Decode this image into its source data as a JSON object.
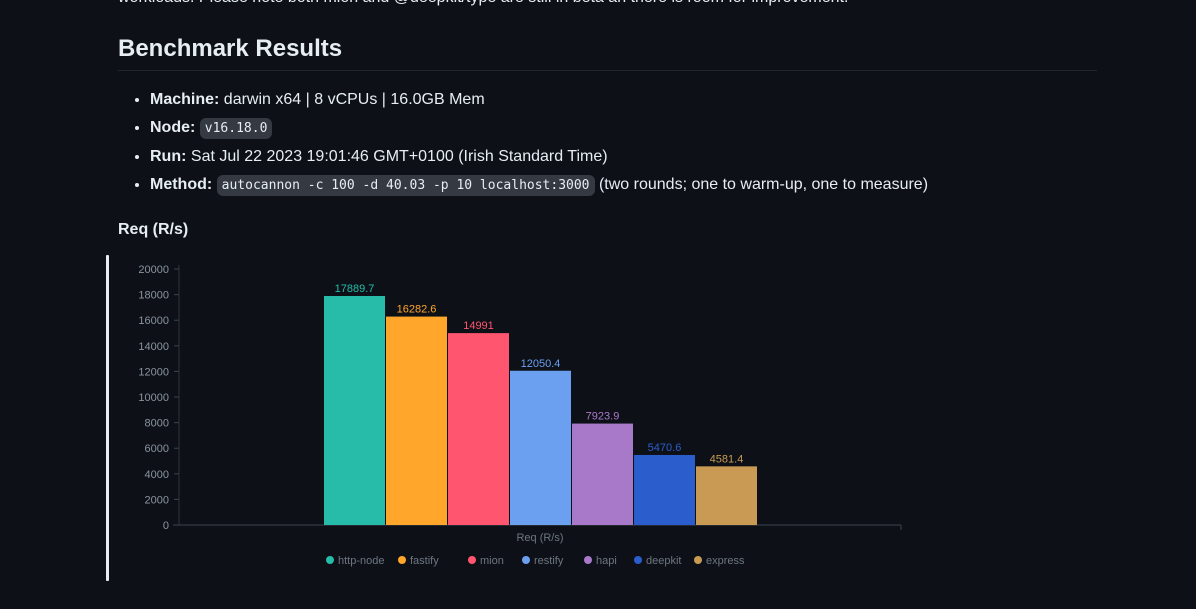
{
  "intro_text": "workloads. Please note both mion and @deepkit/type are still in beta an there is room for improvement.",
  "section_heading": "Benchmark Results",
  "info": {
    "machine_label": "Machine:",
    "machine_value": "darwin x64 | 8 vCPUs | 16.0GB Mem",
    "node_label": "Node:",
    "node_value": "v16.18.0",
    "run_label": "Run:",
    "run_value": "Sat Jul 22 2023 19:01:46 GMT+0100 (Irish Standard Time)",
    "method_label": "Method:",
    "method_value": "autocannon -c 100 -d 40.03 -p 10 localhost:3000",
    "method_note": "(two rounds; one to warm-up, one to measure)"
  },
  "chart_heading": "Req (R/s)",
  "chart_data": {
    "type": "bar",
    "title": "Req (R/s)",
    "xlabel": "Req (R/s)",
    "ylabel": "",
    "ylim": [
      0,
      20000
    ],
    "yticks": [
      0,
      2000,
      4000,
      6000,
      8000,
      10000,
      12000,
      14000,
      16000,
      18000,
      20000
    ],
    "legend_position": "bottom",
    "grid": false,
    "series": [
      {
        "name": "http-node",
        "value": 17889.7,
        "label": "17889.7",
        "color": "#26bca9"
      },
      {
        "name": "fastify",
        "value": 16282.6,
        "label": "16282.6",
        "color": "#ffa62b"
      },
      {
        "name": "mion",
        "value": 14991,
        "label": "14991",
        "color": "#ff556f"
      },
      {
        "name": "restify",
        "value": 12050.4,
        "label": "12050.4",
        "color": "#6b9ff0"
      },
      {
        "name": "hapi",
        "value": 7923.9,
        "label": "7923.9",
        "color": "#a879c9"
      },
      {
        "name": "deepkit",
        "value": 5470.6,
        "label": "5470.6",
        "color": "#2b5dcc"
      },
      {
        "name": "express",
        "value": 4581.4,
        "label": "4581.4",
        "color": "#c99a53"
      }
    ]
  }
}
